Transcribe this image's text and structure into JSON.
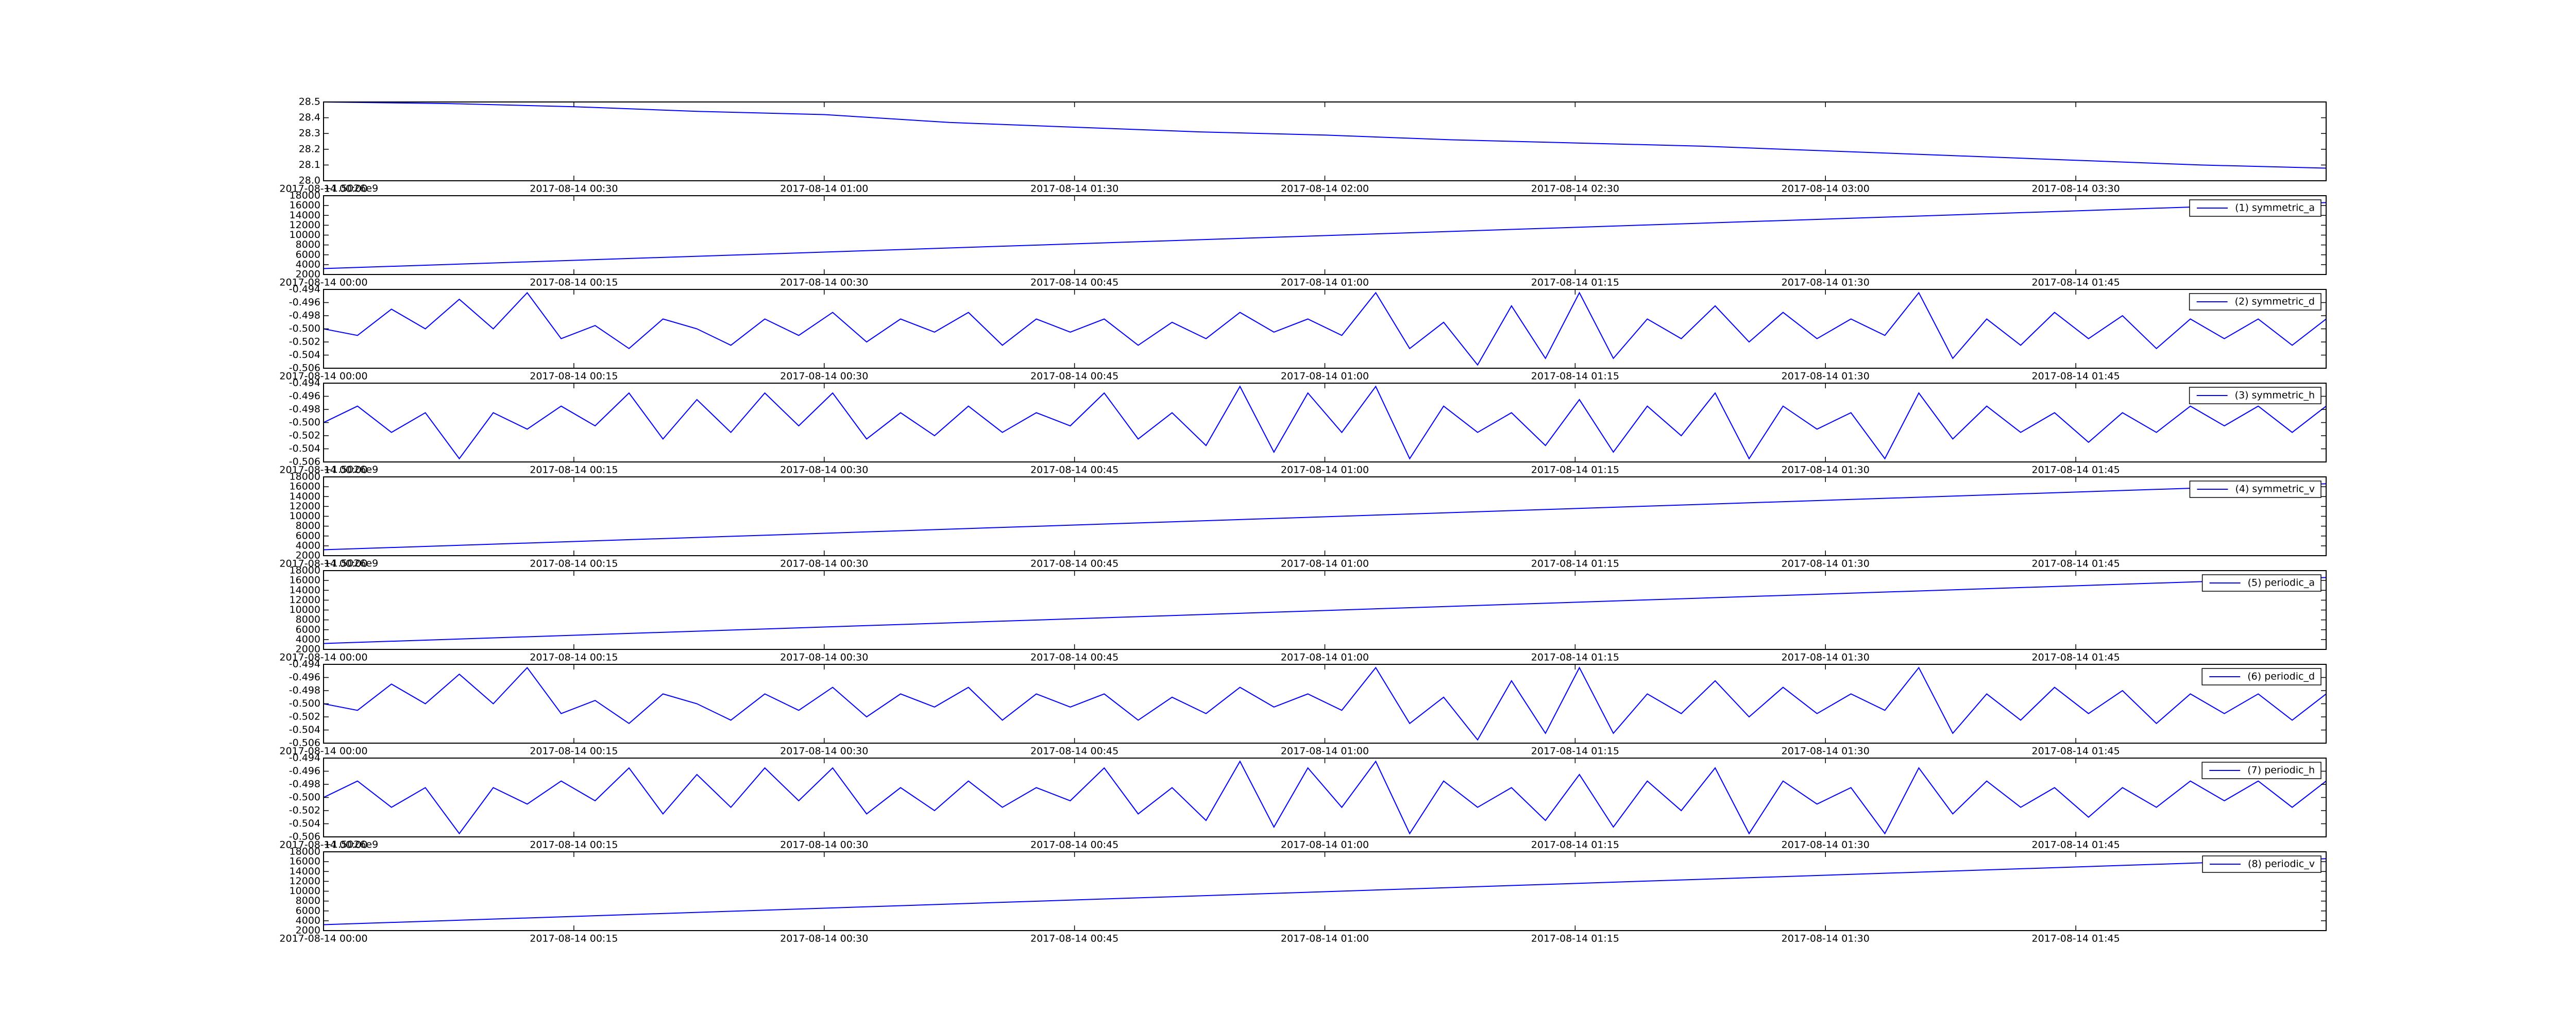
{
  "chart_data": [
    {
      "type": "line",
      "x": [
        "2017-08-14 00:00",
        "2017-08-14 00:15",
        "2017-08-14 00:30",
        "2017-08-14 00:45",
        "2017-08-14 01:00",
        "2017-08-14 01:15",
        "2017-08-14 01:30",
        "2017-08-14 01:45",
        "2017-08-14 02:00",
        "2017-08-14 02:15",
        "2017-08-14 02:30",
        "2017-08-14 02:45",
        "2017-08-14 03:00",
        "2017-08-14 03:15",
        "2017-08-14 03:30",
        "2017-08-14 03:45",
        "2017-08-14 04:00"
      ],
      "series": [
        {
          "color": "#0000ff",
          "values": [
            28.5,
            28.49,
            28.47,
            28.44,
            28.42,
            28.37,
            28.34,
            28.31,
            28.29,
            28.26,
            28.24,
            28.22,
            28.19,
            28.16,
            28.13,
            28.1,
            28.08
          ]
        }
      ],
      "xlim": [
        "2017-08-14 00:00",
        "2017-08-14 04:00"
      ],
      "xticks": [
        "2017-08-14 00:00",
        "2017-08-14 00:30",
        "2017-08-14 01:00",
        "2017-08-14 01:30",
        "2017-08-14 02:00",
        "2017-08-14 02:30",
        "2017-08-14 03:00",
        "2017-08-14 03:30"
      ],
      "ylim": [
        28,
        28.5
      ],
      "yticks": [
        {
          "value": 28,
          "label": "28.0"
        },
        28.1,
        28.2,
        28.3,
        28.4,
        28.5
      ]
    },
    {
      "type": "line",
      "offset_text": "+1.5026e9",
      "x": [
        "2017-08-14 00:00",
        "2017-08-14 02:00"
      ],
      "series": [
        {
          "name": "(1) symmetric_a",
          "color": "#0000ff",
          "values": [
            3200,
            16600
          ]
        }
      ],
      "xlim": [
        "2017-08-14 00:00",
        "2017-08-14 02:00"
      ],
      "xticks": [
        "2017-08-14 00:00",
        "2017-08-14 00:15",
        "2017-08-14 00:30",
        "2017-08-14 00:45",
        "2017-08-14 01:00",
        "2017-08-14 01:15",
        "2017-08-14 01:30",
        "2017-08-14 01:45"
      ],
      "ylim": [
        2000,
        18000
      ],
      "yticks": [
        2000,
        4000,
        6000,
        8000,
        10000,
        12000,
        14000,
        16000,
        18000
      ],
      "legend": "upper right"
    },
    {
      "type": "line",
      "series": [
        {
          "name": "(2) symmetric_d",
          "color": "#0000ff",
          "values": [
            -0.5,
            -0.501,
            -0.497,
            -0.5,
            -0.4955,
            -0.5,
            -0.4945,
            -0.5015,
            -0.4995,
            -0.503,
            -0.4985,
            -0.5,
            -0.5025,
            -0.4985,
            -0.501,
            -0.4975,
            -0.502,
            -0.4985,
            -0.5005,
            -0.4975,
            -0.5025,
            -0.4985,
            -0.5005,
            -0.4985,
            -0.5025,
            -0.499,
            -0.5015,
            -0.4975,
            -0.5005,
            -0.4985,
            -0.501,
            -0.4945,
            -0.503,
            -0.499,
            -0.5055,
            -0.4965,
            -0.5045,
            -0.4945,
            -0.5045,
            -0.4985,
            -0.5015,
            -0.4965,
            -0.502,
            -0.4975,
            -0.5015,
            -0.4985,
            -0.501,
            -0.4945,
            -0.5045,
            -0.4985,
            -0.5025,
            -0.4975,
            -0.5015,
            -0.498,
            -0.503,
            -0.4985,
            -0.5015,
            -0.4985,
            -0.5025,
            -0.4985
          ]
        }
      ],
      "xlim": [
        "2017-08-14 00:00",
        "2017-08-14 02:00"
      ],
      "xticks": [
        "2017-08-14 00:00",
        "2017-08-14 00:15",
        "2017-08-14 00:30",
        "2017-08-14 00:45",
        "2017-08-14 01:00",
        "2017-08-14 01:15",
        "2017-08-14 01:30",
        "2017-08-14 01:45"
      ],
      "ylim": [
        -0.506,
        -0.494
      ],
      "yticks": [
        -0.506,
        -0.504,
        -0.502,
        {
          "value": -0.5,
          "label": "-0.500"
        },
        -0.498,
        -0.496,
        -0.494
      ],
      "legend": "upper right"
    },
    {
      "type": "line",
      "series": [
        {
          "name": "(3) symmetric_h",
          "color": "#0000ff",
          "values": [
            -0.5,
            -0.4975,
            -0.5015,
            -0.4985,
            -0.5055,
            -0.4985,
            -0.501,
            -0.4975,
            -0.5005,
            -0.4955,
            -0.5025,
            -0.4965,
            -0.5015,
            -0.4955,
            -0.5005,
            -0.4955,
            -0.5025,
            -0.4985,
            -0.502,
            -0.4975,
            -0.5015,
            -0.4985,
            -0.5005,
            -0.4955,
            -0.5025,
            -0.4985,
            -0.5035,
            -0.4945,
            -0.5045,
            -0.4955,
            -0.5015,
            -0.4945,
            -0.5055,
            -0.4975,
            -0.5015,
            -0.4985,
            -0.5035,
            -0.4965,
            -0.5045,
            -0.4975,
            -0.502,
            -0.4955,
            -0.5055,
            -0.4975,
            -0.501,
            -0.4985,
            -0.5055,
            -0.4955,
            -0.5025,
            -0.4975,
            -0.5015,
            -0.4985,
            -0.503,
            -0.4985,
            -0.5015,
            -0.4975,
            -0.5005,
            -0.4975,
            -0.5015,
            -0.4975
          ]
        }
      ],
      "xlim": [
        "2017-08-14 00:00",
        "2017-08-14 02:00"
      ],
      "xticks": [
        "2017-08-14 00:00",
        "2017-08-14 00:15",
        "2017-08-14 00:30",
        "2017-08-14 00:45",
        "2017-08-14 01:00",
        "2017-08-14 01:15",
        "2017-08-14 01:30",
        "2017-08-14 01:45"
      ],
      "ylim": [
        -0.506,
        -0.494
      ],
      "yticks": [
        -0.506,
        -0.504,
        -0.502,
        {
          "value": -0.5,
          "label": "-0.500"
        },
        -0.498,
        -0.496,
        -0.494
      ],
      "legend": "upper right"
    },
    {
      "type": "line",
      "offset_text": "+1.5026e9",
      "x": [
        "2017-08-14 00:00",
        "2017-08-14 02:00"
      ],
      "series": [
        {
          "name": "(4) symmetric_v",
          "color": "#0000ff",
          "values": [
            3200,
            16600
          ]
        }
      ],
      "xlim": [
        "2017-08-14 00:00",
        "2017-08-14 02:00"
      ],
      "xticks": [
        "2017-08-14 00:00",
        "2017-08-14 00:15",
        "2017-08-14 00:30",
        "2017-08-14 00:45",
        "2017-08-14 01:00",
        "2017-08-14 01:15",
        "2017-08-14 01:30",
        "2017-08-14 01:45"
      ],
      "ylim": [
        2000,
        18000
      ],
      "yticks": [
        2000,
        4000,
        6000,
        8000,
        10000,
        12000,
        14000,
        16000,
        18000
      ],
      "legend": "upper right"
    },
    {
      "type": "line",
      "offset_text": "+1.5026e9",
      "x": [
        "2017-08-14 00:00",
        "2017-08-14 02:00"
      ],
      "series": [
        {
          "name": "(5) periodic_a",
          "color": "#0000ff",
          "values": [
            3200,
            16600
          ]
        }
      ],
      "xlim": [
        "2017-08-14 00:00",
        "2017-08-14 02:00"
      ],
      "xticks": [
        "2017-08-14 00:00",
        "2017-08-14 00:15",
        "2017-08-14 00:30",
        "2017-08-14 00:45",
        "2017-08-14 01:00",
        "2017-08-14 01:15",
        "2017-08-14 01:30",
        "2017-08-14 01:45"
      ],
      "ylim": [
        2000,
        18000
      ],
      "yticks": [
        2000,
        4000,
        6000,
        8000,
        10000,
        12000,
        14000,
        16000,
        18000
      ],
      "legend": "upper right"
    },
    {
      "type": "line",
      "series": [
        {
          "name": "(6) periodic_d",
          "color": "#0000ff",
          "values": [
            -0.5,
            -0.501,
            -0.497,
            -0.5,
            -0.4955,
            -0.5,
            -0.4945,
            -0.5015,
            -0.4995,
            -0.503,
            -0.4985,
            -0.5,
            -0.5025,
            -0.4985,
            -0.501,
            -0.4975,
            -0.502,
            -0.4985,
            -0.5005,
            -0.4975,
            -0.5025,
            -0.4985,
            -0.5005,
            -0.4985,
            -0.5025,
            -0.499,
            -0.5015,
            -0.4975,
            -0.5005,
            -0.4985,
            -0.501,
            -0.4945,
            -0.503,
            -0.499,
            -0.5055,
            -0.4965,
            -0.5045,
            -0.4945,
            -0.5045,
            -0.4985,
            -0.5015,
            -0.4965,
            -0.502,
            -0.4975,
            -0.5015,
            -0.4985,
            -0.501,
            -0.4945,
            -0.5045,
            -0.4985,
            -0.5025,
            -0.4975,
            -0.5015,
            -0.498,
            -0.503,
            -0.4985,
            -0.5015,
            -0.4985,
            -0.5025,
            -0.4985
          ]
        }
      ],
      "xlim": [
        "2017-08-14 00:00",
        "2017-08-14 02:00"
      ],
      "xticks": [
        "2017-08-14 00:00",
        "2017-08-14 00:15",
        "2017-08-14 00:30",
        "2017-08-14 00:45",
        "2017-08-14 01:00",
        "2017-08-14 01:15",
        "2017-08-14 01:30",
        "2017-08-14 01:45"
      ],
      "ylim": [
        -0.506,
        -0.494
      ],
      "yticks": [
        -0.506,
        -0.504,
        -0.502,
        {
          "value": -0.5,
          "label": "-0.500"
        },
        -0.498,
        -0.496,
        -0.494
      ],
      "legend": "upper right"
    },
    {
      "type": "line",
      "series": [
        {
          "name": "(7) periodic_h",
          "color": "#0000ff",
          "values": [
            -0.5,
            -0.4975,
            -0.5015,
            -0.4985,
            -0.5055,
            -0.4985,
            -0.501,
            -0.4975,
            -0.5005,
            -0.4955,
            -0.5025,
            -0.4965,
            -0.5015,
            -0.4955,
            -0.5005,
            -0.4955,
            -0.5025,
            -0.4985,
            -0.502,
            -0.4975,
            -0.5015,
            -0.4985,
            -0.5005,
            -0.4955,
            -0.5025,
            -0.4985,
            -0.5035,
            -0.4945,
            -0.5045,
            -0.4955,
            -0.5015,
            -0.4945,
            -0.5055,
            -0.4975,
            -0.5015,
            -0.4985,
            -0.5035,
            -0.4965,
            -0.5045,
            -0.4975,
            -0.502,
            -0.4955,
            -0.5055,
            -0.4975,
            -0.501,
            -0.4985,
            -0.5055,
            -0.4955,
            -0.5025,
            -0.4975,
            -0.5015,
            -0.4985,
            -0.503,
            -0.4985,
            -0.5015,
            -0.4975,
            -0.5005,
            -0.4975,
            -0.5015,
            -0.4975
          ]
        }
      ],
      "xlim": [
        "2017-08-14 00:00",
        "2017-08-14 02:00"
      ],
      "xticks": [
        "2017-08-14 00:00",
        "2017-08-14 00:15",
        "2017-08-14 00:30",
        "2017-08-14 00:45",
        "2017-08-14 01:00",
        "2017-08-14 01:15",
        "2017-08-14 01:30",
        "2017-08-14 01:45"
      ],
      "ylim": [
        -0.506,
        -0.494
      ],
      "yticks": [
        -0.506,
        -0.504,
        -0.502,
        {
          "value": -0.5,
          "label": "-0.500"
        },
        -0.498,
        -0.496,
        -0.494
      ],
      "legend": "upper right"
    },
    {
      "type": "line",
      "offset_text": "+1.5026e9",
      "x": [
        "2017-08-14 00:00",
        "2017-08-14 02:00"
      ],
      "series": [
        {
          "name": "(8) periodic_v",
          "color": "#0000ff",
          "values": [
            3200,
            16600
          ]
        }
      ],
      "xlim": [
        "2017-08-14 00:00",
        "2017-08-14 02:00"
      ],
      "xticks": [
        "2017-08-14 00:00",
        "2017-08-14 00:15",
        "2017-08-14 00:30",
        "2017-08-14 00:45",
        "2017-08-14 01:00",
        "2017-08-14 01:15",
        "2017-08-14 01:30",
        "2017-08-14 01:45"
      ],
      "ylim": [
        2000,
        18000
      ],
      "yticks": [
        2000,
        4000,
        6000,
        8000,
        10000,
        12000,
        14000,
        16000,
        18000
      ],
      "legend": "upper right"
    }
  ]
}
